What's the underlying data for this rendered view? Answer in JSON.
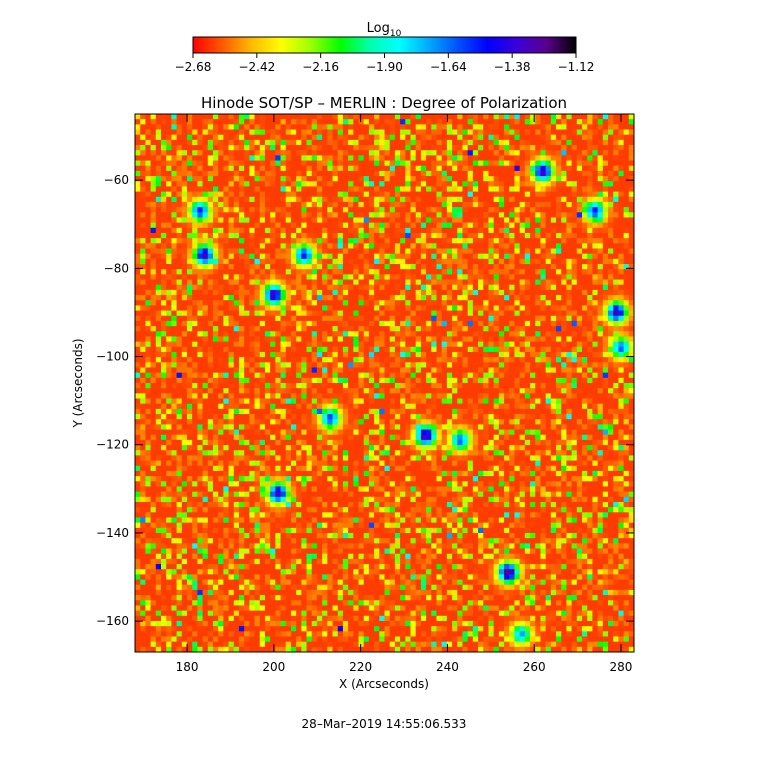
{
  "chart_data": {
    "type": "heatmap",
    "title": "Hinode SOT/SP – MERLIN : Degree of Polarization",
    "xlabel": "X (Arcseconds)",
    "ylabel": "Y (Arcseconds)",
    "xlim": [
      168,
      283
    ],
    "ylim": [
      -167,
      -45
    ],
    "xticks": [
      180,
      200,
      220,
      240,
      260,
      280
    ],
    "yticks": [
      -60,
      -80,
      -100,
      -120,
      -140,
      -160
    ],
    "colorbar": {
      "label": "Log",
      "label_sub": "10",
      "range": [
        -2.68,
        -1.12
      ],
      "ticks": [
        "−2.68",
        "−2.42",
        "−2.16",
        "−1.90",
        "−1.64",
        "−1.38",
        "−1.12"
      ],
      "colormap": [
        "#ff0000",
        "#ff5a00",
        "#ffbb00",
        "#ffff00",
        "#9cff00",
        "#00ff00",
        "#00ffaa",
        "#00ffff",
        "#00aaff",
        "#0050ff",
        "#0000ff",
        "#3c00d8",
        "#5a008c",
        "#000000"
      ]
    },
    "background_level": -2.6,
    "strong_regions": [
      {
        "x": 184,
        "y": -77,
        "level": -1.3
      },
      {
        "x": 183,
        "y": -67,
        "level": -1.5
      },
      {
        "x": 200,
        "y": -86,
        "level": -1.3
      },
      {
        "x": 207,
        "y": -77,
        "level": -1.5
      },
      {
        "x": 262,
        "y": -58,
        "level": -1.3
      },
      {
        "x": 274,
        "y": -67,
        "level": -1.5
      },
      {
        "x": 279,
        "y": -90,
        "level": -1.3
      },
      {
        "x": 235,
        "y": -118,
        "level": -1.25
      },
      {
        "x": 213,
        "y": -114,
        "level": -1.55
      },
      {
        "x": 201,
        "y": -131,
        "level": -1.3
      },
      {
        "x": 254,
        "y": -149,
        "level": -1.2
      },
      {
        "x": 257,
        "y": -163,
        "level": -1.7
      },
      {
        "x": 243,
        "y": -119,
        "level": -1.6
      },
      {
        "x": 280,
        "y": -98,
        "level": -1.6
      }
    ]
  },
  "timestamp": "28–Mar–2019 14:55:06.533"
}
